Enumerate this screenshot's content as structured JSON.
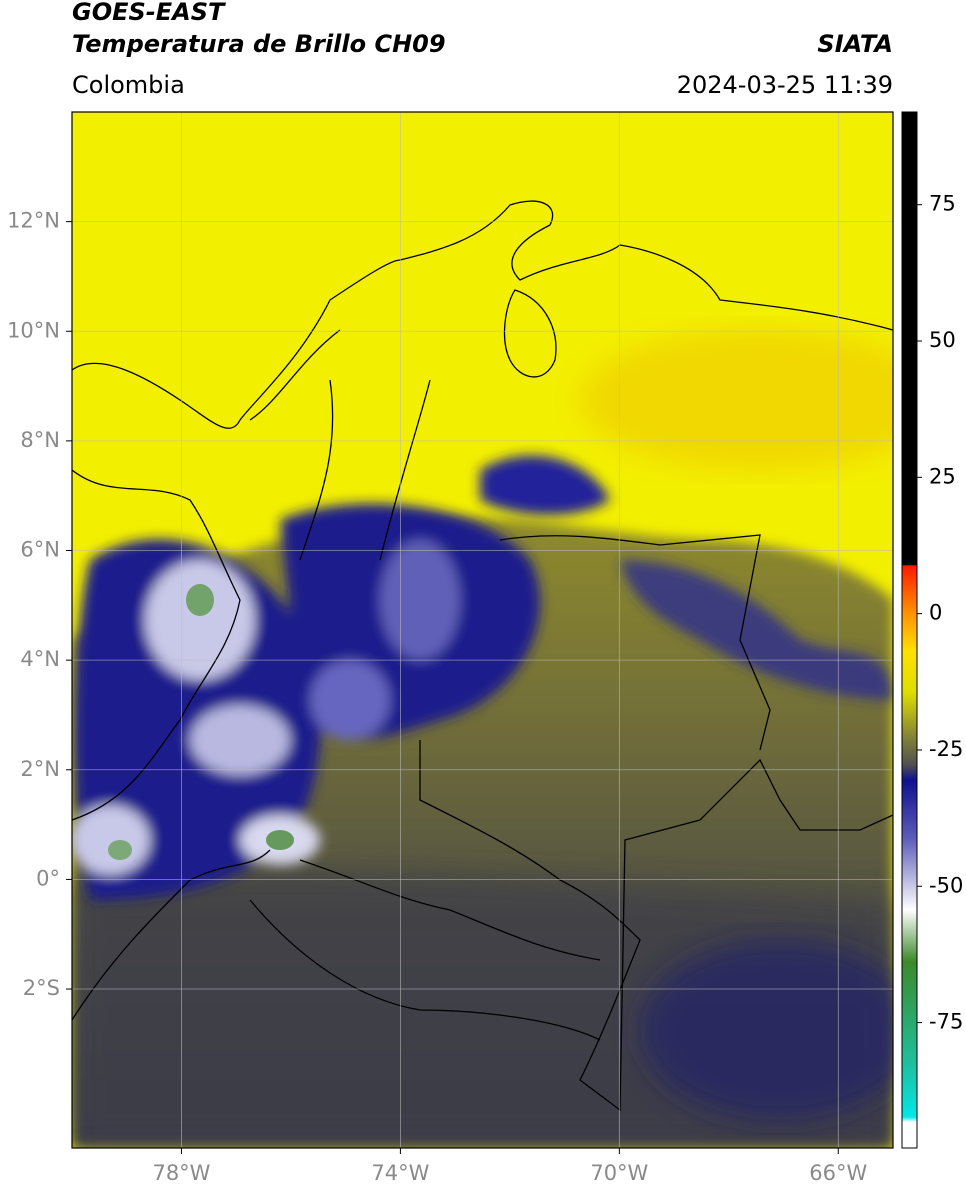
{
  "header": {
    "title": "GOES-EAST",
    "subtitle": "Temperatura de Brillo CH09",
    "source": "SIATA",
    "region": "Colombia",
    "timestamp": "2024-03-25 11:39"
  },
  "map": {
    "xlim": [
      -80,
      -65
    ],
    "ylim": [
      -4.9,
      14
    ],
    "xticks": [
      {
        "value": -78,
        "label": "78°W"
      },
      {
        "value": -74,
        "label": "74°W"
      },
      {
        "value": -70,
        "label": "70°W"
      },
      {
        "value": -66,
        "label": "66°W"
      }
    ],
    "yticks": [
      {
        "value": 12,
        "label": "12°N"
      },
      {
        "value": 10,
        "label": "10°N"
      },
      {
        "value": 8,
        "label": "8°N"
      },
      {
        "value": 6,
        "label": "6°N"
      },
      {
        "value": 4,
        "label": "4°N"
      },
      {
        "value": 2,
        "label": "2°N"
      },
      {
        "value": 0,
        "label": "0°"
      },
      {
        "value": -2,
        "label": "2°S"
      }
    ],
    "grid": true
  },
  "colorbar": {
    "lim": [
      -98,
      92
    ],
    "ticks": [
      75,
      50,
      25,
      0,
      -25,
      -50,
      -75
    ]
  }
}
